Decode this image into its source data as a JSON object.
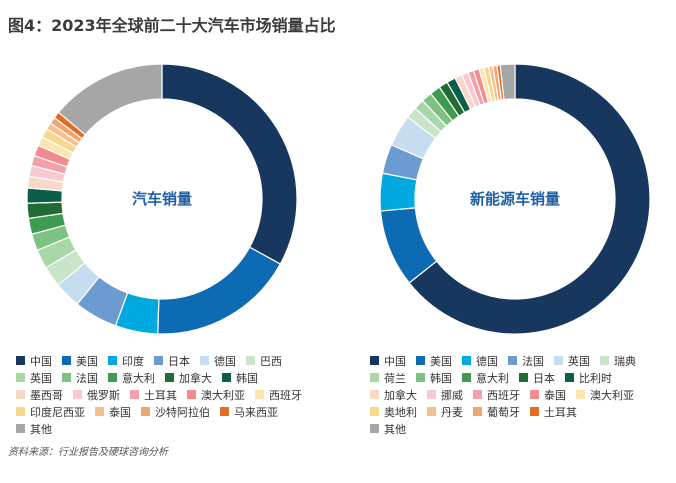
{
  "title": "图4：2023年全球前二十大汽车市场销量占比",
  "source": "资料来源：行业报告及硬球咨询分析",
  "chart_data": [
    {
      "type": "pie",
      "donut": true,
      "center_label": "汽车销量",
      "categories": [
        "中国",
        "美国",
        "印度",
        "日本",
        "德国",
        "巴西",
        "英国",
        "法国",
        "意大利",
        "加拿大",
        "韩国",
        "墨西哥",
        "俄罗斯",
        "土耳其",
        "澳大利亚",
        "西班牙",
        "印度尼西亚",
        "泰国",
        "沙特阿拉伯",
        "马来西亚",
        "其他"
      ],
      "values": [
        33.0,
        17.5,
        5.1,
        5.2,
        3.2,
        2.5,
        2.3,
        2.0,
        1.9,
        1.8,
        1.8,
        1.4,
        1.3,
        1.2,
        1.3,
        1.1,
        1.1,
        0.8,
        0.8,
        0.8,
        13.9
      ],
      "colors": [
        "#17375e",
        "#0d6bb4",
        "#00a9e0",
        "#6c9bd2",
        "#c6dcef",
        "#c9e4c8",
        "#a8d8a8",
        "#7ec283",
        "#3e9b4f",
        "#216b35",
        "#0b5e4a",
        "#f8d9c9",
        "#f9c9d0",
        "#f2a0aa",
        "#f28b8e",
        "#fce5b0",
        "#f8d78e",
        "#f5bf8e",
        "#f2a570",
        "#e26c22",
        "#a6a6a6"
      ]
    },
    {
      "type": "pie",
      "donut": true,
      "center_label": "新能源车销量",
      "categories": [
        "中国",
        "美国",
        "德国",
        "法国",
        "英国",
        "瑞典",
        "荷兰",
        "韩国",
        "意大利",
        "日本",
        "比利时",
        "加拿大",
        "挪威",
        "西班牙",
        "泰国",
        "澳大利亚",
        "奥地利",
        "丹麦",
        "葡萄牙",
        "土耳其",
        "其他"
      ],
      "values": [
        66.0,
        9.5,
        4.6,
        3.6,
        3.9,
        1.4,
        1.3,
        1.3,
        1.3,
        1.1,
        1.1,
        0.9,
        0.8,
        0.7,
        0.7,
        0.6,
        0.6,
        0.5,
        0.5,
        0.4,
        1.8
      ],
      "colors": [
        "#17375e",
        "#0d6bb4",
        "#00a9e0",
        "#6c9bd2",
        "#c6dcef",
        "#c9e4c8",
        "#a8d8a8",
        "#7ec283",
        "#3e9b4f",
        "#216b35",
        "#0b5e4a",
        "#f8d9c9",
        "#f9c9d0",
        "#f2a0aa",
        "#f28b8e",
        "#fce5b0",
        "#f8d78e",
        "#f5bf8e",
        "#f2a570",
        "#e26c22",
        "#a6a6a6"
      ]
    }
  ],
  "legend_left": [
    [
      "中国",
      "美国",
      "印度",
      "日本",
      "德国",
      "巴西"
    ],
    [
      "英国",
      "法国",
      "意大利",
      "加拿大",
      "韩国"
    ],
    [
      "墨西哥",
      "俄罗斯",
      "土耳其",
      "澳大利亚",
      "西班牙"
    ],
    [
      "印度尼西亚",
      "泰国",
      "沙特阿拉伯",
      "马来西亚"
    ],
    [
      "其他"
    ]
  ],
  "legend_right": [
    [
      "中国",
      "美国",
      "德国",
      "法国",
      "英国",
      "瑞典"
    ],
    [
      "荷兰",
      "韩国",
      "意大利",
      "日本",
      "比利时"
    ],
    [
      "加拿大",
      "挪威",
      "西班牙",
      "泰国",
      "澳大利亚"
    ],
    [
      "奥地利",
      "丹麦",
      "葡萄牙",
      "土耳其"
    ],
    [
      "其他"
    ]
  ]
}
